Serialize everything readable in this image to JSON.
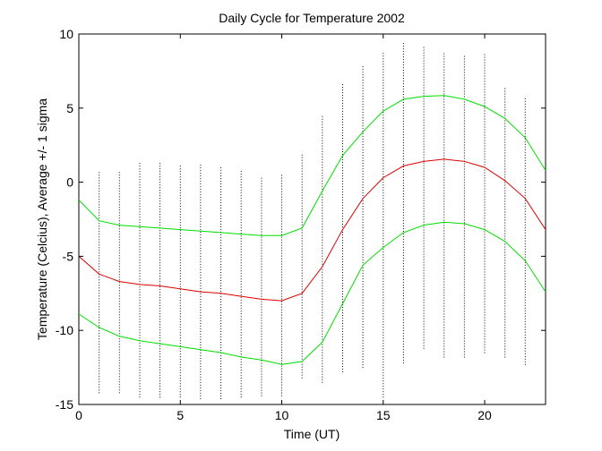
{
  "chart_data": {
    "type": "line",
    "title": "Daily Cycle for Temperature 2002",
    "xlabel": "Time (UT)",
    "ylabel": "Temperature (Celcius), Average +/- 1 sigma",
    "xlim": [
      0,
      23
    ],
    "ylim": [
      -15,
      10
    ],
    "xticks": [
      "0",
      "5",
      "10",
      "15",
      "20"
    ],
    "xtick_values": [
      0,
      5,
      10,
      15,
      20
    ],
    "yticks": [
      "-15",
      "-10",
      "-5",
      "0",
      "5",
      "10"
    ],
    "ytick_values": [
      -15,
      -10,
      -5,
      0,
      5,
      10
    ],
    "grid": false,
    "legend": "none",
    "x": [
      0,
      1,
      2,
      3,
      4,
      5,
      6,
      7,
      8,
      9,
      10,
      11,
      12,
      13,
      14,
      15,
      16,
      17,
      18,
      19,
      20,
      21,
      22,
      23
    ],
    "series": [
      {
        "color": "#00dd00",
        "values": [
          -1.2,
          -2.6,
          -2.9,
          -3.0,
          -3.1,
          -3.2,
          -3.3,
          -3.4,
          -3.5,
          -3.6,
          -3.6,
          -3.1,
          -0.6,
          1.8,
          3.4,
          4.8,
          5.6,
          5.8,
          5.85,
          5.6,
          5.1,
          4.3,
          3.0,
          0.8
        ]
      },
      {
        "color": "#dd0000",
        "values": [
          -5.0,
          -6.2,
          -6.7,
          -6.9,
          -7.0,
          -7.2,
          -7.4,
          -7.5,
          -7.7,
          -7.9,
          -8.0,
          -7.5,
          -5.7,
          -3.2,
          -1.1,
          0.3,
          1.1,
          1.4,
          1.55,
          1.4,
          1.0,
          0.1,
          -1.1,
          -3.2
        ]
      },
      {
        "color": "#00dd00",
        "values": [
          -8.9,
          -9.8,
          -10.4,
          -10.7,
          -10.9,
          -11.1,
          -11.3,
          -11.5,
          -11.8,
          -12.0,
          -12.3,
          -12.1,
          -10.8,
          -8.2,
          -5.6,
          -4.4,
          -3.4,
          -2.9,
          -2.7,
          -2.8,
          -3.2,
          -4.0,
          -5.3,
          -7.4
        ]
      }
    ],
    "scatter": {
      "color": "#000000",
      "ymin": [
        -12.3,
        -14.2,
        -14.2,
        -14.5,
        -14.5,
        -14.5,
        -14.6,
        -14.6,
        -14.5,
        -14.4,
        -14.4,
        -13.2,
        -13.5,
        -12.8,
        -12.5,
        -14.5,
        -12.2,
        -11.2,
        -11.8,
        -11.8,
        -11.5,
        -11.8,
        -12.3,
        -14.5
      ],
      "ymax": [
        0.4,
        0.7,
        0.8,
        1.3,
        1.4,
        1.1,
        1.2,
        1.1,
        0.8,
        0.3,
        0.6,
        1.9,
        4.6,
        6.6,
        7.8,
        8.7,
        9.4,
        9.1,
        8.8,
        8.5,
        8.7,
        6.4,
        5.8,
        4.8
      ]
    }
  }
}
